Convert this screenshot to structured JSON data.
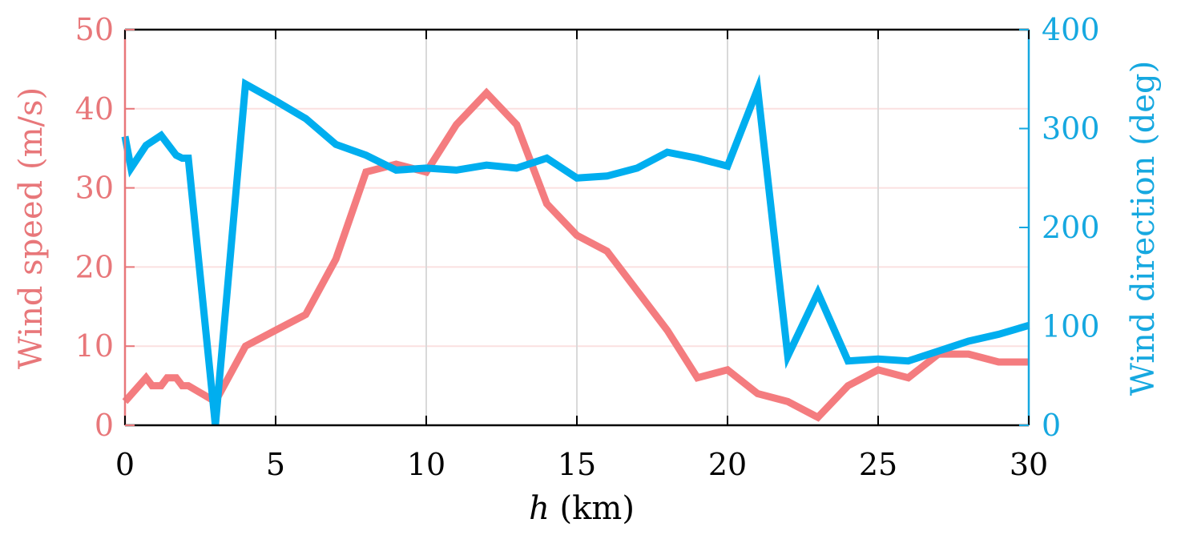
{
  "chart_data": {
    "type": "line",
    "xlabel_var": "h",
    "xlabel_unit": "(km)",
    "ylabel_left": "Wind speed (m/s)",
    "ylabel_right": "Wind direction (deg)",
    "xlim": [
      0,
      30
    ],
    "ylim_left": [
      0,
      50
    ],
    "ylim_right": [
      0,
      400
    ],
    "x_ticks": [
      "0",
      "5",
      "10",
      "15",
      "20",
      "25",
      "30"
    ],
    "y_left_ticks": [
      "0",
      "10",
      "20",
      "30",
      "40",
      "50"
    ],
    "y_right_ticks": [
      "0",
      "100",
      "200",
      "300",
      "400"
    ],
    "grid": true,
    "colors": {
      "wind_speed": "#f47c7f",
      "wind_direction": "#00aeef",
      "left_axis": "#e8777a",
      "right_axis": "#16a8e0",
      "x_grid": "#d9d9d9",
      "y_grid": "#fbe0e0"
    },
    "series": [
      {
        "axis": "left",
        "x": [
          0,
          0.7,
          0.9,
          1.2,
          1.4,
          1.7,
          1.9,
          2.1,
          3,
          4,
          5,
          6,
          7,
          8,
          9,
          10,
          11,
          12,
          13,
          14,
          15,
          16,
          17,
          18,
          19,
          20,
          21,
          22,
          23,
          24,
          25,
          26,
          27,
          28,
          29,
          30
        ],
        "y": [
          3,
          6,
          5,
          5,
          6,
          6,
          5,
          5,
          3,
          10,
          12,
          14,
          21,
          32,
          33,
          32,
          38,
          42,
          38,
          28,
          24,
          22,
          17,
          12,
          6,
          7,
          4,
          3,
          1,
          5,
          7,
          6,
          9,
          9,
          8,
          8
        ]
      },
      {
        "axis": "right",
        "x": [
          0,
          0.2,
          0.7,
          1.2,
          1.7,
          1.9,
          2.1,
          3,
          4,
          5,
          6,
          7,
          8,
          9,
          10,
          11,
          12,
          13,
          14,
          15,
          16,
          17,
          18,
          19,
          20,
          21,
          22,
          23,
          24,
          25,
          26,
          27,
          28,
          29,
          30
        ],
        "y": [
          292,
          260,
          283,
          293,
          273,
          270,
          270,
          0,
          345,
          328,
          310,
          284,
          273,
          258,
          260,
          258,
          263,
          260,
          270,
          250,
          252,
          260,
          276,
          270,
          262,
          340,
          70,
          134,
          65,
          67,
          65,
          75,
          85,
          92,
          101
        ]
      }
    ]
  }
}
